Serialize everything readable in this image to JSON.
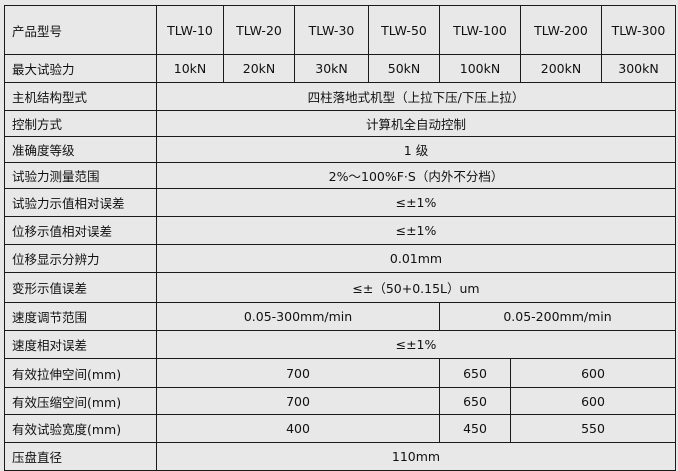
{
  "header": {
    "label": "产品型号",
    "models": [
      "TLW-10",
      "TLW-20",
      "TLW-30",
      "TLW-50",
      "TLW-100",
      "TLW-200",
      "TLW-300"
    ]
  },
  "max_force": {
    "label": "最大试验力",
    "values": [
      "10kN",
      "20kN",
      "30kN",
      "50kN",
      "100kN",
      "200kN",
      "300kN"
    ]
  },
  "structure": {
    "label": "主机结构型式",
    "value": "四柱落地式机型（上拉下压/下压上拉）"
  },
  "control": {
    "label": "控制方式",
    "value": "计算机全自动控制"
  },
  "accuracy": {
    "label": "准确度等级",
    "value": "1 级"
  },
  "force_range": {
    "label": "试验力测量范围",
    "value": "2%～100%F·S（内外不分档）"
  },
  "force_error": {
    "label": "试验力示值相对误差",
    "value": "≤±1%"
  },
  "disp_error": {
    "label": "位移示值相对误差",
    "value": "≤±1%"
  },
  "disp_resolution": {
    "label": "位移显示分辨力",
    "value": "0.01mm"
  },
  "deform_error": {
    "label": "变形示值误差",
    "value": "≤±（50+0.15L）um"
  },
  "speed_range": {
    "label": "速度调节范围",
    "values": [
      "0.05-300mm/min",
      "0.05-200mm/min"
    ]
  },
  "speed_error": {
    "label": "速度相对误差",
    "value": "≤±1%"
  },
  "tension_space": {
    "label": "有效拉伸空间(mm)",
    "values": [
      "700",
      "650",
      "600"
    ]
  },
  "compress_space": {
    "label": "有效压缩空间(mm)",
    "values": [
      "700",
      "650",
      "600"
    ]
  },
  "test_width": {
    "label": "有效试验宽度(mm)",
    "values": [
      "400",
      "450",
      "550"
    ]
  },
  "platen_diameter": {
    "label": "压盘直径",
    "value": "110mm"
  }
}
